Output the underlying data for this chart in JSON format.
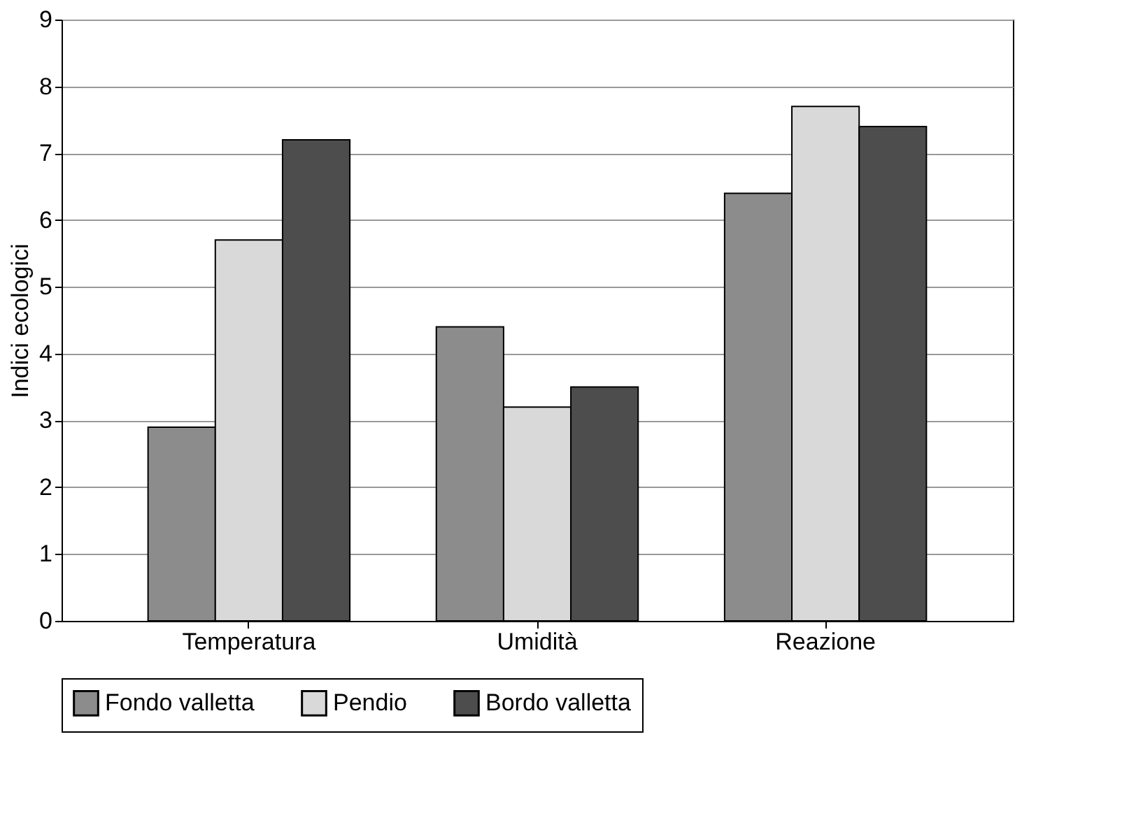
{
  "chart_data": {
    "type": "bar",
    "ylabel": "Indici ecologici",
    "categories": [
      "Temperatura",
      "Umidità",
      "Reazione"
    ],
    "series": [
      {
        "name": "Fondo valletta",
        "color": "#8c8c8c",
        "values": [
          2.9,
          4.4,
          6.4
        ]
      },
      {
        "name": "Pendio",
        "color": "#d9d9d9",
        "values": [
          5.7,
          3.2,
          7.7
        ]
      },
      {
        "name": "Bordo valletta",
        "color": "#4d4d4d",
        "values": [
          7.2,
          3.5,
          7.4
        ]
      }
    ],
    "ylim": [
      0,
      9
    ],
    "yticks": [
      0,
      1,
      2,
      3,
      4,
      5,
      6,
      7,
      8,
      9
    ],
    "grid": "y",
    "legend": "bottom"
  }
}
